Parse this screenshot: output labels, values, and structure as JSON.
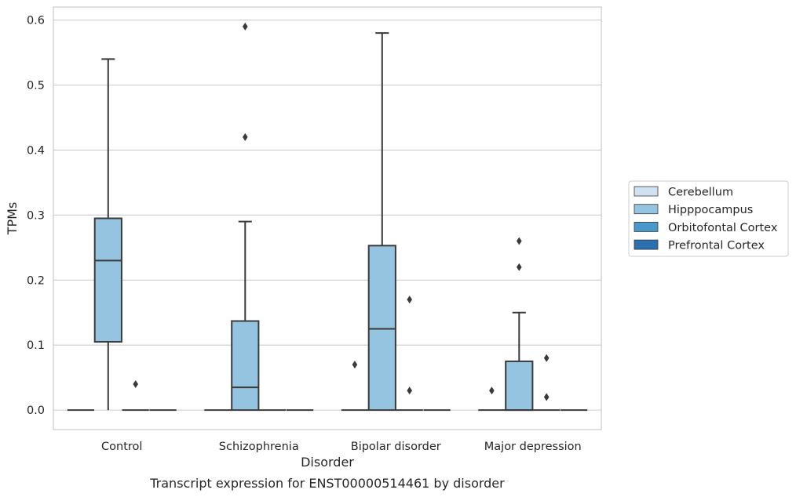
{
  "chart_data": {
    "type": "box",
    "caption": "Transcript expression for ENST00000514461 by disorder",
    "xlabel": "Disorder",
    "ylabel": "TPMs",
    "ylim": [
      -0.03,
      0.62
    ],
    "yticks": [
      "0.0",
      "0.1",
      "0.2",
      "0.3",
      "0.4",
      "0.5",
      "0.6"
    ],
    "ytick_values": [
      0.0,
      0.1,
      0.2,
      0.3,
      0.4,
      0.5,
      0.6
    ],
    "categories": [
      "Control",
      "Schizophrenia",
      "Bipolar disorder",
      "Major depression"
    ],
    "grid": "horizontal",
    "legend_position": "right",
    "series": [
      {
        "name": "Cerebellum",
        "color": "#d0e1f2",
        "boxes": [
          {
            "min": 0,
            "q1": 0,
            "median": 0,
            "q3": 0,
            "max": 0,
            "outliers": []
          },
          {
            "min": 0,
            "q1": 0,
            "median": 0,
            "q3": 0,
            "max": 0,
            "outliers": []
          },
          {
            "min": 0,
            "q1": 0,
            "median": 0,
            "q3": 0,
            "max": 0,
            "outliers": [
              0.07
            ]
          },
          {
            "min": 0,
            "q1": 0,
            "median": 0,
            "q3": 0,
            "max": 0,
            "outliers": [
              0.03
            ]
          }
        ]
      },
      {
        "name": "Hipppocampus",
        "color": "#94c4df",
        "boxes": [
          {
            "min": 0,
            "q1": 0.105,
            "median": 0.23,
            "q3": 0.295,
            "max": 0.54,
            "outliers": []
          },
          {
            "min": 0,
            "q1": 0,
            "median": 0.035,
            "q3": 0.137,
            "max": 0.29,
            "outliers": [
              0.42,
              0.59
            ]
          },
          {
            "min": 0,
            "q1": 0,
            "median": 0.125,
            "q3": 0.253,
            "max": 0.58,
            "outliers": []
          },
          {
            "min": 0,
            "q1": 0,
            "median": 0,
            "q3": 0.075,
            "max": 0.15,
            "outliers": [
              0.22,
              0.26
            ]
          }
        ]
      },
      {
        "name": "Orbitofontal Cortex",
        "color": "#4a98c9",
        "boxes": [
          {
            "min": 0,
            "q1": 0,
            "median": 0,
            "q3": 0,
            "max": 0,
            "outliers": [
              0.04
            ]
          },
          {
            "min": 0,
            "q1": 0,
            "median": 0,
            "q3": 0,
            "max": 0,
            "outliers": []
          },
          {
            "min": 0,
            "q1": 0,
            "median": 0,
            "q3": 0,
            "max": 0,
            "outliers": [
              0.03,
              0.17
            ]
          },
          {
            "min": 0,
            "q1": 0,
            "median": 0,
            "q3": 0,
            "max": 0,
            "outliers": [
              0.02,
              0.08
            ]
          }
        ]
      },
      {
        "name": "Prefrontal Cortex",
        "color": "#2c6faf",
        "boxes": [
          {
            "min": 0,
            "q1": 0,
            "median": 0,
            "q3": 0,
            "max": 0,
            "outliers": []
          },
          {
            "min": 0,
            "q1": 0,
            "median": 0,
            "q3": 0,
            "max": 0,
            "outliers": []
          },
          {
            "min": 0,
            "q1": 0,
            "median": 0,
            "q3": 0,
            "max": 0,
            "outliers": []
          },
          {
            "min": 0,
            "q1": 0,
            "median": 0,
            "q3": 0,
            "max": 0,
            "outliers": []
          }
        ]
      }
    ],
    "colors": {
      "grid": "#cccccc",
      "frame": "#cccccc",
      "box_edge": "#3a3a3a"
    }
  }
}
